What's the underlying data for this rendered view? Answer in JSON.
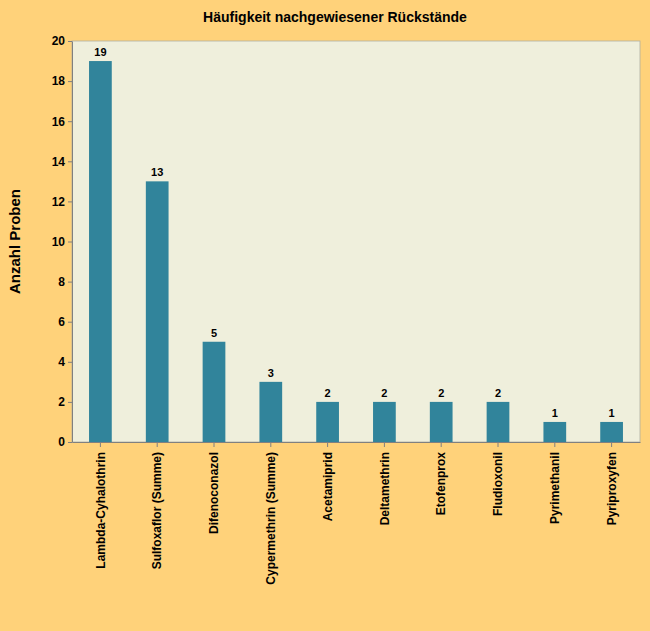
{
  "chart_data": {
    "type": "bar",
    "title": "Häufigkeit nachgewiesener Rückstände",
    "y_label": "Anzahl Proben",
    "categories": [
      "Lambda-Cyhalothrin",
      "Sulfoxaflor (Summe)",
      "Difenoconazol",
      "Cypermethrin (Summe)",
      "Acetamiprid",
      "Deltamethrin",
      "Etofenprox",
      "Fludioxonil",
      "Pyrimethanil",
      "Pyriproxyfen"
    ],
    "values": [
      19,
      13,
      5,
      3,
      2,
      2,
      2,
      2,
      1,
      1
    ],
    "color": "#31849b",
    "ylim": [
      0,
      20
    ],
    "yticks": [
      0,
      2,
      4,
      6,
      8,
      10,
      12,
      14,
      16,
      18,
      20
    ],
    "grid": false,
    "data_labels": true
  }
}
